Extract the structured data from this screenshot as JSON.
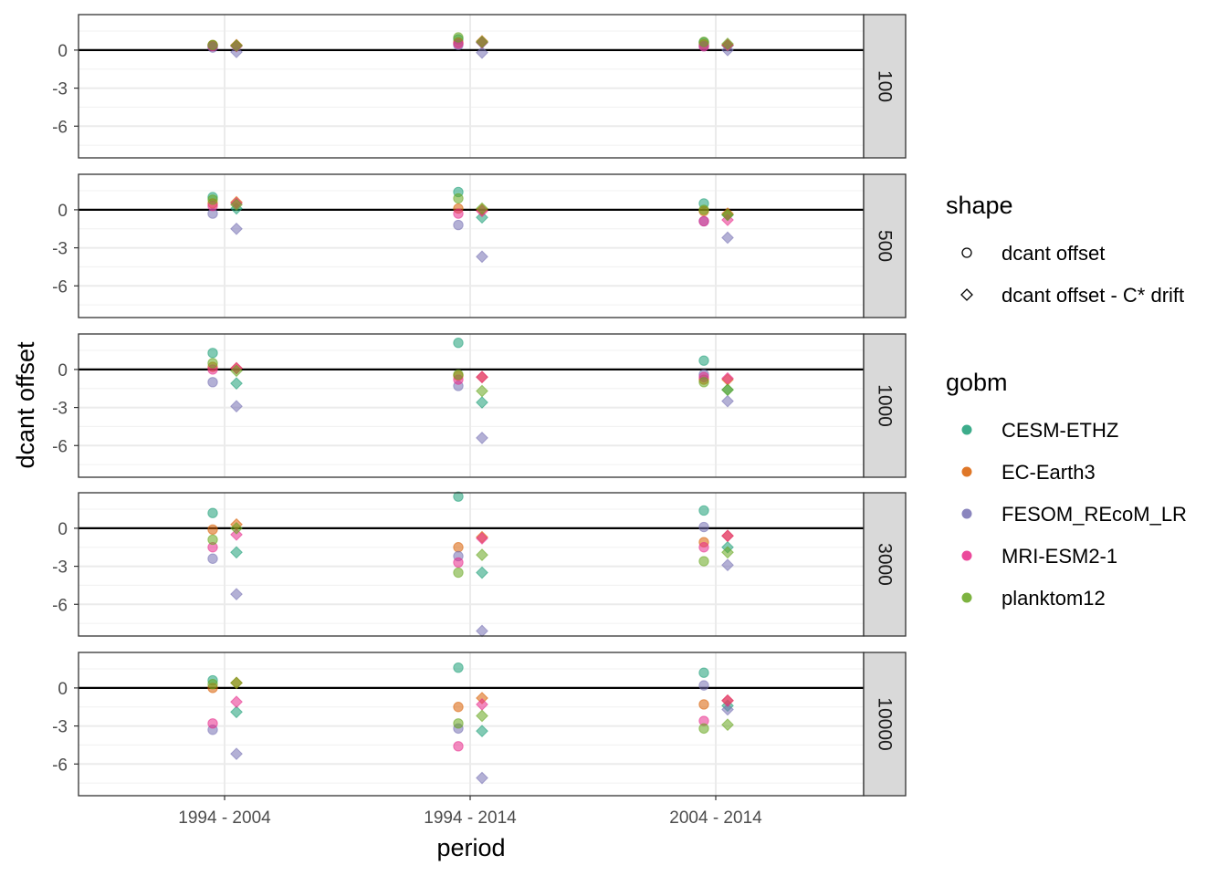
{
  "chart_data": {
    "type": "scatter",
    "xlabel": "period",
    "ylabel": "dcant offset",
    "x_categories": [
      "1994 - 2004",
      "1994 - 2014",
      "2004 - 2014"
    ],
    "y_ticks": [
      0,
      -3,
      -6
    ],
    "ylim": [
      -8.5,
      2.8
    ],
    "grid": true,
    "legend_placement": "right",
    "facets": [
      "100",
      "500",
      "1000",
      "3000",
      "10000"
    ],
    "shape_legend": {
      "title": "shape",
      "entries": [
        {
          "label": "dcant offset",
          "shape": "circle"
        },
        {
          "label": "dcant offset - C* drift",
          "shape": "diamond"
        }
      ]
    },
    "color_legend": {
      "title": "gobm",
      "entries": [
        {
          "label": "CESM-ETHZ",
          "color": "#1b9e77"
        },
        {
          "label": "EC-Earth3",
          "color": "#d95f02"
        },
        {
          "label": "FESOM_REcoM_LR",
          "color": "#7570b3"
        },
        {
          "label": "MRI-ESM2-1",
          "color": "#e7298a"
        },
        {
          "label": "planktom12",
          "color": "#66a61e"
        }
      ]
    },
    "series": [
      {
        "facet": "100",
        "gobm": "CESM-ETHZ",
        "circle": [
          0.35,
          0.85,
          0.6
        ],
        "diamond": [
          0.35,
          0.6,
          0.35
        ]
      },
      {
        "facet": "100",
        "gobm": "EC-Earth3",
        "circle": [
          0.4,
          0.6,
          0.45
        ],
        "diamond": [
          0.4,
          0.7,
          0.4
        ]
      },
      {
        "facet": "100",
        "gobm": "FESOM_REcoM_LR",
        "circle": [
          0.2,
          0.4,
          0.3
        ],
        "diamond": [
          -0.15,
          -0.2,
          0.0
        ]
      },
      {
        "facet": "100",
        "gobm": "MRI-ESM2-1",
        "circle": [
          0.3,
          0.5,
          0.3
        ],
        "diamond": [
          0.3,
          0.6,
          0.4
        ]
      },
      {
        "facet": "100",
        "gobm": "planktom12",
        "circle": [
          0.4,
          1.0,
          0.65
        ],
        "diamond": [
          0.35,
          0.65,
          0.5
        ]
      },
      {
        "facet": "500",
        "gobm": "CESM-ETHZ",
        "circle": [
          1.0,
          1.4,
          0.5
        ],
        "diamond": [
          0.1,
          -0.6,
          -0.4
        ]
      },
      {
        "facet": "500",
        "gobm": "EC-Earth3",
        "circle": [
          0.5,
          0.1,
          -0.1
        ],
        "diamond": [
          0.6,
          0.0,
          -0.3
        ]
      },
      {
        "facet": "500",
        "gobm": "FESOM_REcoM_LR",
        "circle": [
          -0.3,
          -1.2,
          -0.9
        ],
        "diamond": [
          -1.5,
          -3.7,
          -2.2
        ]
      },
      {
        "facet": "500",
        "gobm": "MRI-ESM2-1",
        "circle": [
          0.3,
          -0.3,
          -0.9
        ],
        "diamond": [
          0.5,
          -0.1,
          -0.8
        ]
      },
      {
        "facet": "500",
        "gobm": "planktom12",
        "circle": [
          0.8,
          0.9,
          0.0
        ],
        "diamond": [
          0.4,
          0.1,
          -0.4
        ]
      },
      {
        "facet": "1000",
        "gobm": "CESM-ETHZ",
        "circle": [
          1.3,
          2.1,
          0.7
        ],
        "diamond": [
          -1.1,
          -2.6,
          -1.6
        ]
      },
      {
        "facet": "1000",
        "gobm": "EC-Earth3",
        "circle": [
          0.2,
          -0.5,
          -0.8
        ],
        "diamond": [
          0.1,
          -0.6,
          -0.8
        ]
      },
      {
        "facet": "1000",
        "gobm": "FESOM_REcoM_LR",
        "circle": [
          -1.0,
          -1.3,
          -0.4
        ],
        "diamond": [
          -2.9,
          -5.4,
          -2.5
        ]
      },
      {
        "facet": "1000",
        "gobm": "MRI-ESM2-1",
        "circle": [
          0.0,
          -0.8,
          -0.6
        ],
        "diamond": [
          0.1,
          -0.6,
          -0.7
        ]
      },
      {
        "facet": "1000",
        "gobm": "planktom12",
        "circle": [
          0.5,
          -0.4,
          -1.0
        ],
        "diamond": [
          -0.1,
          -1.7,
          -1.6
        ]
      },
      {
        "facet": "3000",
        "gobm": "CESM-ETHZ",
        "circle": [
          1.2,
          2.5,
          1.4
        ],
        "diamond": [
          -1.9,
          -3.5,
          -1.5
        ]
      },
      {
        "facet": "3000",
        "gobm": "EC-Earth3",
        "circle": [
          -0.1,
          -1.5,
          -1.1
        ],
        "diamond": [
          0.3,
          -0.7,
          -0.6
        ]
      },
      {
        "facet": "3000",
        "gobm": "FESOM_REcoM_LR",
        "circle": [
          -2.4,
          -2.2,
          0.1
        ],
        "diamond": [
          -5.2,
          -8.1,
          -2.9
        ]
      },
      {
        "facet": "3000",
        "gobm": "MRI-ESM2-1",
        "circle": [
          -1.5,
          -2.7,
          -1.5
        ],
        "diamond": [
          -0.5,
          -0.8,
          -0.6
        ]
      },
      {
        "facet": "3000",
        "gobm": "planktom12",
        "circle": [
          -0.9,
          -3.5,
          -2.6
        ],
        "diamond": [
          0.0,
          -2.1,
          -1.9
        ]
      },
      {
        "facet": "10000",
        "gobm": "CESM-ETHZ",
        "circle": [
          0.6,
          1.6,
          1.2
        ],
        "diamond": [
          -1.9,
          -3.4,
          -1.4
        ]
      },
      {
        "facet": "10000",
        "gobm": "EC-Earth3",
        "circle": [
          0.0,
          -1.5,
          -1.3
        ],
        "diamond": [
          0.4,
          -0.8,
          -1.0
        ]
      },
      {
        "facet": "10000",
        "gobm": "FESOM_REcoM_LR",
        "circle": [
          -3.3,
          -3.2,
          0.2
        ],
        "diamond": [
          -5.2,
          -7.1,
          -1.7
        ]
      },
      {
        "facet": "10000",
        "gobm": "MRI-ESM2-1",
        "circle": [
          -2.8,
          -4.6,
          -2.6
        ],
        "diamond": [
          -1.1,
          -1.3,
          -1.0
        ]
      },
      {
        "facet": "10000",
        "gobm": "planktom12",
        "circle": [
          0.3,
          -2.8,
          -3.2
        ],
        "diamond": [
          0.4,
          -2.2,
          -2.9
        ]
      }
    ]
  }
}
